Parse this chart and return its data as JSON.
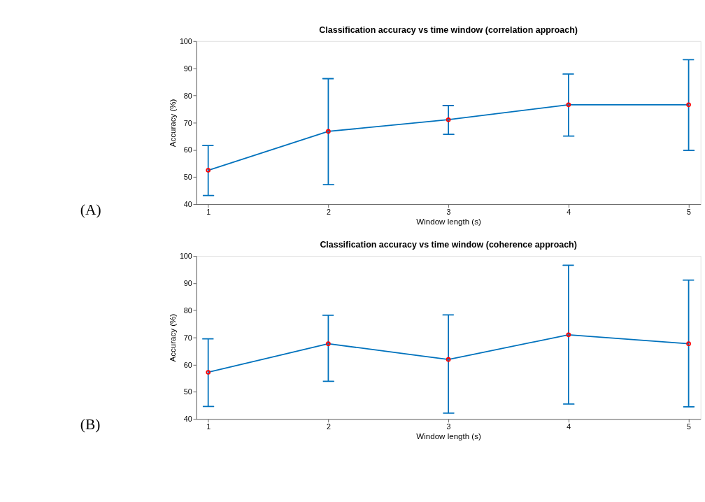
{
  "chart_data": [
    {
      "type": "line",
      "title": "Classification accuracy vs time window (correlation approach)",
      "xlabel": "Window length (s)",
      "ylabel": "Accuracy (%)",
      "annotations": [
        "(A)"
      ],
      "x": [
        1,
        2,
        3,
        4,
        5
      ],
      "series": [
        {
          "color": "#0072bd",
          "values": [
            52.5,
            66.8,
            71.1,
            76.6,
            76.6
          ],
          "errors": [
            [
              43.2,
              61.6
            ],
            [
              47.2,
              86.2
            ],
            [
              65.7,
              76.3
            ],
            [
              65.1,
              87.9
            ],
            [
              59.8,
              93.2
            ]
          ]
        }
      ],
      "xlim": [
        0.9,
        5.1
      ],
      "ylim": [
        40,
        100
      ],
      "xticks": [
        1,
        2,
        3,
        4,
        5
      ],
      "yticks": [
        40,
        50,
        60,
        70,
        80,
        90,
        100
      ],
      "grid": false,
      "marker": "circle",
      "line_style": "solid"
    },
    {
      "type": "line",
      "title": "Classification accuracy vs time window (coherence approach)",
      "xlabel": "Window length (s)",
      "ylabel": "Accuracy (%)",
      "annotations": [
        "(B)"
      ],
      "x": [
        1,
        2,
        3,
        4,
        5
      ],
      "series": [
        {
          "color": "#0072bd",
          "values": [
            57.2,
            67.7,
            61.9,
            71.0,
            67.7
          ],
          "errors": [
            [
              44.6,
              69.5
            ],
            [
              53.9,
              78.2
            ],
            [
              42.2,
              78.3
            ],
            [
              45.5,
              96.6
            ],
            [
              44.5,
              91.1
            ]
          ]
        }
      ],
      "xlim": [
        0.9,
        5.1
      ],
      "ylim": [
        40,
        100
      ],
      "xticks": [
        1,
        2,
        3,
        4,
        5
      ],
      "yticks": [
        40,
        50,
        60,
        70,
        80,
        90,
        100
      ],
      "grid": false,
      "marker": "circle",
      "line_style": "solid"
    }
  ]
}
